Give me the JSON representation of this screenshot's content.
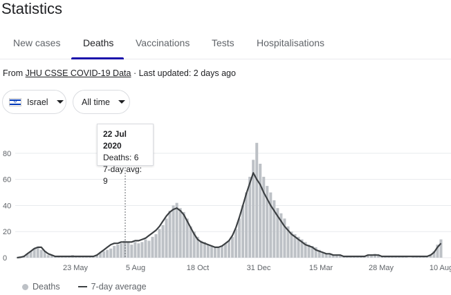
{
  "page": {
    "title": "Statistics"
  },
  "tabs": [
    {
      "label": "New cases"
    },
    {
      "label": "Deaths"
    },
    {
      "label": "Vaccinations"
    },
    {
      "label": "Tests"
    },
    {
      "label": "Hospitalisations"
    }
  ],
  "active_tab": "Deaths",
  "source": {
    "prefix": "From ",
    "link": "JHU CSSE COVID-19 Data",
    "updated": " · Last updated: 2 days ago"
  },
  "filters": {
    "country": "Israel",
    "country_flag_icon": "israel-flag-icon",
    "range": "All time"
  },
  "tooltip": {
    "date": "22 Jul 2020",
    "deaths": "Deaths: 6",
    "avg": "7-day avg: 9"
  },
  "legend": {
    "deaths": "Deaths",
    "average": "7-day average"
  },
  "colors": {
    "bars": "#bdc1c6",
    "line": "#3c4043",
    "accent": "#1a0dab",
    "grid": "#e8eaed"
  },
  "chart_data": {
    "type": "bar",
    "title": "",
    "xlabel": "",
    "ylabel": "",
    "y_ticks": [
      0,
      20,
      40,
      60,
      80
    ],
    "ylim": [
      0,
      90
    ],
    "grid": true,
    "x_ticks": [
      "23 May",
      "5 Aug",
      "18 Oct",
      "31 Dec",
      "15 Mar",
      "28 May",
      "10 Aug"
    ],
    "legend_position": "bottom-left",
    "series": [
      {
        "name": "Deaths",
        "kind": "bar",
        "values": [
          0,
          1,
          1,
          3,
          5,
          7,
          8,
          6,
          5,
          2,
          2,
          1,
          1,
          1,
          1,
          1,
          2,
          1,
          1,
          1,
          1,
          1,
          1,
          2,
          4,
          5,
          6,
          7,
          9,
          10,
          11,
          13,
          12,
          10,
          12,
          11,
          12,
          14,
          13,
          16,
          18,
          22,
          25,
          30,
          36,
          40,
          42,
          38,
          35,
          30,
          24,
          20,
          16,
          13,
          12,
          10,
          9,
          8,
          8,
          9,
          11,
          13,
          16,
          22,
          30,
          40,
          50,
          62,
          75,
          88,
          72,
          62,
          55,
          50,
          44,
          38,
          34,
          30,
          24,
          20,
          18,
          16,
          14,
          12,
          10,
          9,
          8,
          6,
          4,
          3,
          3,
          2,
          2,
          2,
          1,
          1,
          1,
          1,
          1,
          1,
          1,
          2,
          2,
          3,
          2,
          1,
          1,
          1,
          1,
          1,
          1,
          1,
          1,
          0,
          1,
          1,
          1,
          1,
          1,
          2,
          5,
          10,
          14
        ]
      },
      {
        "name": "7-day average",
        "kind": "line",
        "values": [
          0,
          0.3,
          1,
          3,
          5,
          7,
          8,
          8,
          5,
          3,
          2,
          1,
          1,
          1,
          1,
          1,
          1,
          1,
          1,
          1,
          1,
          1,
          1,
          2,
          4,
          6,
          8,
          10,
          11,
          11,
          12,
          12,
          12,
          12,
          13,
          13,
          14,
          15,
          17,
          19,
          21,
          24,
          28,
          32,
          35,
          37,
          38,
          36,
          33,
          28,
          23,
          18,
          14,
          12,
          11,
          10,
          9,
          8,
          8,
          9,
          11,
          13,
          17,
          23,
          31,
          40,
          49,
          57,
          65,
          60,
          56,
          50,
          45,
          40,
          36,
          32,
          28,
          24,
          21,
          18,
          16,
          14,
          12,
          10,
          9,
          8,
          6,
          5,
          4,
          3,
          3,
          2,
          2,
          2,
          1,
          1,
          1,
          1,
          1,
          1,
          1,
          2,
          2,
          2,
          2,
          1,
          1,
          1,
          1,
          1,
          1,
          1,
          1,
          1,
          1,
          1,
          1,
          1,
          1,
          2,
          4,
          8,
          11
        ]
      }
    ]
  }
}
